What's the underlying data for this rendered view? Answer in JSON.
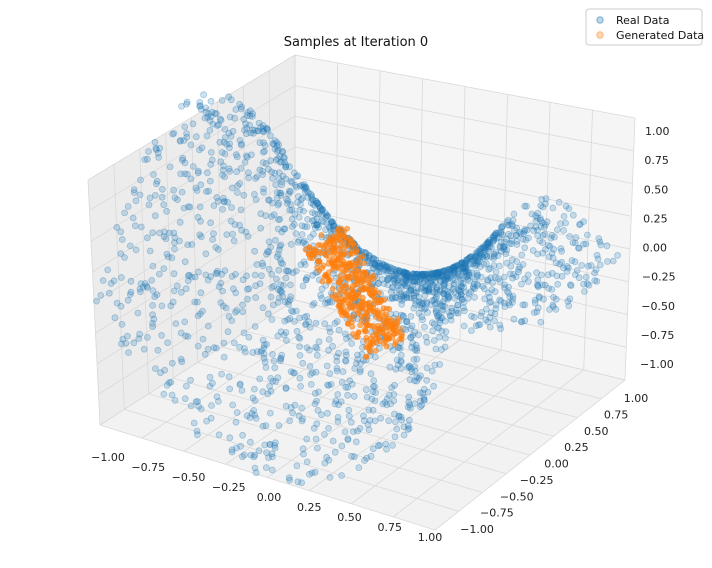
{
  "chart_data": {
    "type": "scatter",
    "title": "Samples at Iteration 0",
    "x_ticks": [
      "−1.00",
      "−0.75",
      "−0.50",
      "−0.25",
      "0.00",
      "0.25",
      "0.50",
      "0.75",
      "1.00"
    ],
    "y_ticks": [
      "−1.00",
      "−0.75",
      "−0.50",
      "−0.25",
      "0.00",
      "0.25",
      "0.50",
      "0.75",
      "1.00"
    ],
    "z_ticks": [
      "−1.00",
      "−0.75",
      "−0.50",
      "−0.25",
      "0.00",
      "0.25",
      "0.50",
      "0.75",
      "1.00"
    ],
    "xlim": [
      -1.0,
      1.0
    ],
    "ylim": [
      -1.0,
      1.0
    ],
    "zlim": [
      -1.0,
      1.0
    ],
    "legend_position": "top-right",
    "series": [
      {
        "name": "Real Data",
        "color": "#1f77b4",
        "surface": "z = x^2 - y^2 saddle over [-1,1]^2",
        "count": 2000
      },
      {
        "name": "Generated Data",
        "color": "#ff7f0e",
        "cluster_center": [
          0.05,
          -0.1,
          -0.15
        ],
        "count": 400
      }
    ],
    "grid": true
  }
}
